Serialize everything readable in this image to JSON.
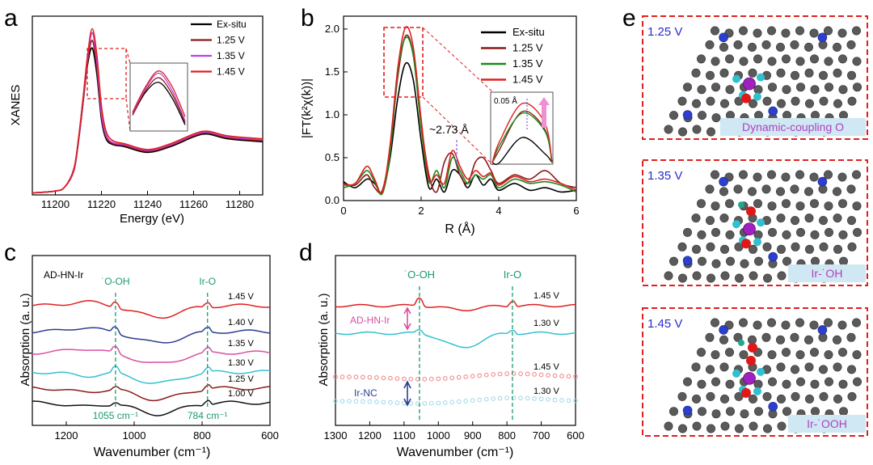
{
  "panel_labels": {
    "a": "a",
    "b": "b",
    "c": "c",
    "d": "d",
    "e": "e"
  },
  "chart_data": [
    {
      "id": "a",
      "type": "line",
      "xlabel": "Energy (eV)",
      "ylabel": "XANES",
      "xlim": [
        11190,
        11290
      ],
      "ylim": [
        0,
        1.85
      ],
      "xticks": [
        11200,
        11220,
        11240,
        11260,
        11280
      ],
      "series": [
        {
          "name": "Ex-situ",
          "color": "#000000",
          "x": [
            11190,
            11200,
            11204,
            11208,
            11210,
            11212,
            11214,
            11216,
            11218,
            11220,
            11222,
            11225,
            11230,
            11240,
            11250,
            11260,
            11266,
            11275,
            11290
          ],
          "y": [
            0.02,
            0.04,
            0.08,
            0.25,
            0.55,
            0.95,
            1.35,
            1.52,
            1.25,
            0.78,
            0.58,
            0.52,
            0.5,
            0.44,
            0.5,
            0.6,
            0.63,
            0.58,
            0.55
          ]
        },
        {
          "name": "1.25 V",
          "color": "#8b1a1a",
          "x": [
            11190,
            11200,
            11204,
            11208,
            11210,
            11212,
            11214,
            11216,
            11218,
            11220,
            11222,
            11225,
            11230,
            11240,
            11250,
            11260,
            11266,
            11275,
            11290
          ],
          "y": [
            0.02,
            0.04,
            0.08,
            0.25,
            0.55,
            0.95,
            1.38,
            1.6,
            1.32,
            0.82,
            0.6,
            0.53,
            0.51,
            0.45,
            0.51,
            0.61,
            0.64,
            0.59,
            0.56
          ]
        },
        {
          "name": "1.35 V",
          "color": "#c040e0",
          "x": [
            11190,
            11200,
            11204,
            11208,
            11210,
            11212,
            11214,
            11216,
            11218,
            11220,
            11222,
            11225,
            11230,
            11240,
            11250,
            11260,
            11266,
            11275,
            11290
          ],
          "y": [
            0.02,
            0.04,
            0.08,
            0.26,
            0.57,
            0.98,
            1.42,
            1.68,
            1.38,
            0.85,
            0.62,
            0.54,
            0.52,
            0.46,
            0.52,
            0.62,
            0.65,
            0.6,
            0.57
          ]
        },
        {
          "name": "1.45 V",
          "color": "#e02020",
          "x": [
            11190,
            11200,
            11204,
            11208,
            11210,
            11212,
            11214,
            11216,
            11218,
            11220,
            11222,
            11225,
            11230,
            11240,
            11250,
            11260,
            11266,
            11275,
            11290
          ],
          "y": [
            0.02,
            0.04,
            0.08,
            0.27,
            0.58,
            1.0,
            1.45,
            1.72,
            1.45,
            0.92,
            0.66,
            0.56,
            0.53,
            0.47,
            0.53,
            0.63,
            0.66,
            0.61,
            0.58
          ]
        }
      ]
    },
    {
      "id": "b",
      "type": "line",
      "xlabel": "R (Å)",
      "ylabel": "|FT(k²χ(k))|",
      "xlim": [
        0,
        6
      ],
      "ylim": [
        0,
        2.15
      ],
      "xticks": [
        0,
        2,
        4,
        6
      ],
      "yticks": [
        0.0,
        0.5,
        1.0,
        1.5,
        2.0
      ],
      "annotation": "~2.73 Å",
      "inset_label": "0.05 Å",
      "series": [
        {
          "name": "Ex-situ",
          "color": "#000000",
          "x": [
            0,
            0.3,
            0.6,
            0.8,
            1.0,
            1.2,
            1.4,
            1.6,
            1.8,
            2.0,
            2.2,
            2.4,
            2.6,
            2.8,
            3.0,
            3.2,
            3.4,
            3.6,
            3.8,
            4.0,
            4.4,
            4.8,
            5.2,
            5.6,
            6.0
          ],
          "y": [
            0.22,
            0.15,
            0.25,
            0.2,
            0.1,
            0.5,
            1.2,
            1.6,
            1.4,
            0.7,
            0.15,
            0.25,
            0.1,
            0.35,
            0.3,
            0.15,
            0.3,
            0.18,
            0.25,
            0.12,
            0.2,
            0.12,
            0.15,
            0.1,
            0.12
          ]
        },
        {
          "name": "1.25 V",
          "color": "#8b1a1a",
          "x": [
            0,
            0.3,
            0.6,
            0.8,
            1.0,
            1.2,
            1.4,
            1.6,
            1.8,
            2.0,
            2.2,
            2.4,
            2.6,
            2.8,
            3.0,
            3.2,
            3.4,
            3.6,
            3.8,
            4.0,
            4.4,
            4.8,
            5.2,
            5.6,
            6.0
          ],
          "y": [
            0.2,
            0.18,
            0.3,
            0.15,
            0.12,
            0.6,
            1.45,
            1.92,
            1.7,
            0.9,
            0.3,
            0.1,
            0.45,
            0.55,
            0.3,
            0.2,
            0.45,
            0.5,
            0.35,
            0.2,
            0.3,
            0.25,
            0.35,
            0.2,
            0.15
          ]
        },
        {
          "name": "1.35 V",
          "color": "#1a8a1a",
          "x": [
            0,
            0.3,
            0.6,
            0.8,
            1.0,
            1.2,
            1.4,
            1.6,
            1.8,
            2.0,
            2.2,
            2.4,
            2.6,
            2.8,
            3.0,
            3.2,
            3.4,
            3.6,
            3.8,
            4.0,
            4.4,
            4.8,
            5.2,
            5.6,
            6.0
          ],
          "y": [
            0.15,
            0.2,
            0.35,
            0.22,
            0.08,
            0.55,
            1.5,
            1.9,
            1.68,
            0.85,
            0.22,
            0.35,
            0.15,
            0.5,
            0.35,
            0.2,
            0.3,
            0.25,
            0.3,
            0.15,
            0.25,
            0.2,
            0.22,
            0.18,
            0.1
          ]
        },
        {
          "name": "1.45 V",
          "color": "#e02020",
          "x": [
            0,
            0.3,
            0.6,
            0.8,
            1.0,
            1.2,
            1.4,
            1.6,
            1.8,
            2.0,
            2.2,
            2.4,
            2.6,
            2.8,
            3.0,
            3.2,
            3.4,
            3.6,
            3.8,
            4.0,
            4.4,
            4.8,
            5.2,
            5.6,
            6.0
          ],
          "y": [
            0.18,
            0.2,
            0.4,
            0.25,
            0.1,
            0.65,
            1.55,
            2.02,
            1.78,
            0.95,
            0.25,
            0.3,
            0.2,
            0.58,
            0.4,
            0.25,
            0.35,
            0.28,
            0.32,
            0.18,
            0.28,
            0.22,
            0.25,
            0.2,
            0.12
          ]
        }
      ]
    },
    {
      "id": "c",
      "type": "line",
      "xlabel": "Wavenumber (cm⁻¹)",
      "ylabel": "Absorption (a. u.)",
      "title_note": "AD-HN-Ir",
      "xlim": [
        1300,
        600
      ],
      "xticks": [
        1200,
        1000,
        800,
        600
      ],
      "peak_labels": [
        "˙O-OH",
        "Ir-O"
      ],
      "peak_positions": [
        1055,
        784
      ],
      "peak_value_labels": [
        "1055 cm⁻¹",
        "784 cm⁻¹"
      ],
      "series": [
        {
          "name": "1.45 V",
          "color": "#e02020"
        },
        {
          "name": "1.40 V",
          "color": "#2a3f8f"
        },
        {
          "name": "1.35 V",
          "color": "#d94fa0"
        },
        {
          "name": "1.30 V",
          "color": "#35c0d0"
        },
        {
          "name": "1.25 V",
          "color": "#8b1a1a"
        },
        {
          "name": "1.00 V",
          "color": "#111111"
        }
      ]
    },
    {
      "id": "d",
      "type": "line",
      "xlabel": "Wavenumber (cm⁻¹)",
      "ylabel": "Absorption (a. u.)",
      "xlim": [
        1300,
        600
      ],
      "xticks": [
        1300,
        1200,
        1100,
        1000,
        900,
        800,
        700,
        600
      ],
      "peak_labels": [
        "˙O-OH",
        "Ir-O"
      ],
      "peak_positions": [
        1055,
        784
      ],
      "group_labels": [
        "AD-HN-Ir",
        "Ir-NC"
      ],
      "series": [
        {
          "name": "1.45 V",
          "color": "#e02020",
          "group": "AD-HN-Ir"
        },
        {
          "name": "1.30 V",
          "color": "#35c0d0",
          "group": "AD-HN-Ir"
        },
        {
          "name": "1.45 V",
          "color": "#f08080",
          "group": "Ir-NC"
        },
        {
          "name": "1.30 V",
          "color": "#9ad8e8",
          "group": "Ir-NC"
        }
      ]
    }
  ],
  "panel_e": [
    {
      "potential": "1.25 V",
      "caption": "Dynamic-coupling O"
    },
    {
      "potential": "1.35 V",
      "caption": "Ir-˙OH"
    },
    {
      "potential": "1.45 V",
      "caption": "Ir-˙OOH"
    }
  ]
}
